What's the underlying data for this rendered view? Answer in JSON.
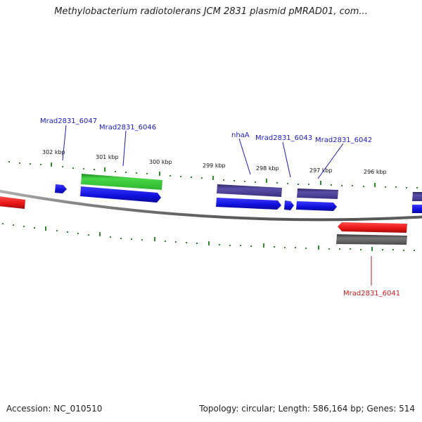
{
  "title": "Methylobacterium radiotolerans JCM 2831 plasmid pMRAD01, com...",
  "footer": {
    "accession": "Accession: NC_010510",
    "summary": "Topology: circular; Length: 586,164 bp; Genes: 514"
  },
  "scale_labels": [
    "302 kbp",
    "301 kbp",
    "300 kbp",
    "299 kbp",
    "298 kbp",
    "297 kbp",
    "296 kbp"
  ],
  "gene_labels": {
    "mrad6047": "Mrad2831_6047",
    "mrad6046": "Mrad2831_6046",
    "nhaA": "nhaA",
    "mrad6043": "Mrad2831_6043",
    "mrad6042": "Mrad2831_6042",
    "mrad6041": "Mrad2831_6041"
  },
  "colors": {
    "cds_blue": "#1f1fe6",
    "gene_green": "#3bcc3b",
    "gene_navy": "#4a3f8c",
    "gene_red": "#ee1f1f",
    "gene_gray": "#666666",
    "backbone": "#808080",
    "tick_green": "#2e8b2e",
    "label_blue": "#1a1acc",
    "label_red": "#cc1a1a"
  }
}
